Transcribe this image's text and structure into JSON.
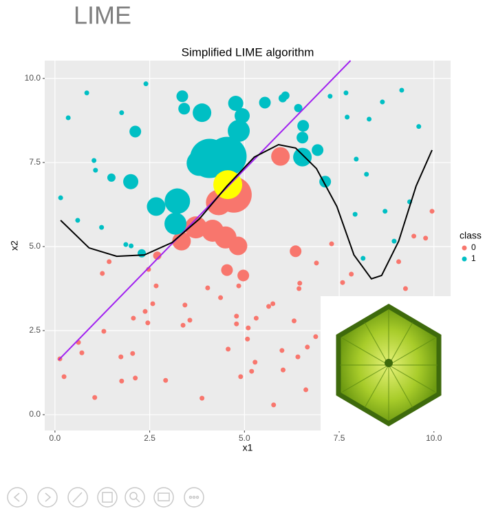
{
  "slide_title": "LIME",
  "chart_data": {
    "type": "scatter",
    "title": "Simplified LIME algorithm",
    "xlabel": "x1",
    "ylabel": "x2",
    "legend_title": "class",
    "xlim": [
      -0.27,
      10.44
    ],
    "ylim": [
      -0.47,
      10.53
    ],
    "xticks": [
      {
        "value": 0,
        "label": "0.0"
      },
      {
        "value": 2.5,
        "label": "2.5"
      },
      {
        "value": 5,
        "label": "5.0"
      },
      {
        "value": 7.5,
        "label": "7.5"
      },
      {
        "value": 10,
        "label": "10.0"
      }
    ],
    "yticks": [
      {
        "value": 0,
        "label": "0.0"
      },
      {
        "value": 2.5,
        "label": "2.5"
      },
      {
        "value": 5,
        "label": "5.0"
      },
      {
        "value": 7.5,
        "label": "7.5"
      },
      {
        "value": 10,
        "label": "10.0"
      }
    ],
    "grid": true,
    "panel_color": "#EBEBEB",
    "series": [
      {
        "name": "0",
        "color": "#F8766D",
        "x": [
          0.13,
          0.24,
          0.62,
          0.71,
          1.05,
          1.25,
          1.29,
          1.43,
          1.74,
          1.76,
          2.05,
          2.07,
          2.12,
          2.38,
          2.45,
          2.47,
          2.58,
          2.7,
          2.67,
          2.92,
          3.38,
          3.43,
          3.56,
          3.34,
          3.72,
          4.03,
          3.88,
          4.16,
          4.37,
          4.32,
          4.72,
          4.5,
          4.54,
          4.83,
          4.85,
          4.97,
          4.79,
          4.79,
          4.57,
          4.9,
          5.1,
          5.08,
          5.19,
          5.28,
          5.31,
          5.64,
          5.75,
          5.77,
          5.95,
          5.99,
          6.02,
          6.31,
          6.35,
          6.46,
          6.44,
          6.41,
          6.62,
          6.9,
          6.66,
          6.88,
          7.3,
          7.59,
          7.82,
          9.07,
          9.25,
          9.47,
          9.78,
          9.95
        ],
        "values": [
          1.66,
          1.13,
          2.15,
          1.84,
          0.51,
          4.2,
          2.48,
          4.55,
          1.72,
          1,
          1.82,
          2.87,
          1.09,
          3.07,
          2.73,
          4.32,
          3.3,
          4.73,
          3.83,
          1.02,
          2.66,
          3.26,
          2.81,
          5.16,
          5.57,
          3.77,
          0.49,
          5.47,
          3.48,
          6.31,
          6.54,
          5.27,
          4.3,
          5.02,
          3.83,
          4.14,
          2.93,
          2.7,
          1.95,
          1.13,
          2.58,
          2.25,
          1.29,
          1.56,
          2.87,
          3.22,
          3.3,
          0.29,
          7.68,
          1.91,
          1.33,
          2.79,
          4.86,
          3.91,
          3.75,
          1.72,
          0.74,
          4.51,
          2.01,
          2.32,
          5.08,
          3.93,
          4.18,
          4.55,
          3.75,
          5.31,
          5.25,
          6.05
        ],
        "sizes": [
          1,
          1,
          1,
          1,
          1,
          1,
          1,
          1,
          1,
          1,
          1,
          1,
          1,
          1,
          1,
          1,
          1,
          2,
          1,
          1,
          1,
          1,
          1,
          5,
          6,
          1,
          1,
          6,
          1,
          7,
          10,
          6,
          3,
          5,
          1,
          3,
          1,
          1,
          1,
          1,
          1,
          1,
          1,
          1,
          1,
          1,
          1,
          1,
          5,
          1,
          1,
          1,
          3,
          1,
          1,
          1,
          1,
          1,
          1,
          1,
          1,
          1,
          1,
          1,
          1,
          1,
          1,
          1
        ]
      },
      {
        "name": "1",
        "color": "#00BFC4",
        "x": [
          0.15,
          0.35,
          0.84,
          0.6,
          1.03,
          1.07,
          1.23,
          1.49,
          1.76,
          2.12,
          2.4,
          2,
          1.87,
          2.01,
          2.29,
          2.67,
          3.23,
          3.18,
          3.36,
          3.41,
          3.88,
          4.08,
          4.54,
          3.81,
          4.77,
          4.85,
          4.94,
          5.54,
          6.01,
          6.08,
          6.42,
          6.55,
          6.53,
          6.53,
          6.93,
          7.13,
          7.26,
          7.68,
          7.71,
          8.29,
          8.64,
          9.15,
          9.6,
          7.95,
          8.22,
          7.92,
          8.71,
          9.36,
          8.95,
          8.13
        ],
        "values": [
          6.45,
          8.83,
          9.57,
          5.78,
          7.56,
          7.27,
          5.57,
          7.05,
          8.98,
          8.42,
          9.84,
          6.93,
          5.06,
          5.02,
          4.8,
          6.19,
          6.35,
          5.68,
          9.47,
          9.1,
          8.98,
          7.62,
          7.68,
          7.48,
          9.26,
          8.44,
          8.89,
          9.28,
          9.41,
          9.49,
          9.12,
          8.59,
          8.24,
          7.66,
          7.87,
          6.93,
          9.47,
          9.57,
          8.85,
          8.79,
          9.3,
          9.65,
          8.57,
          7.6,
          7.15,
          5.96,
          6.05,
          6.33,
          5.16,
          4.65
        ],
        "sizes": [
          1,
          1,
          1,
          1,
          1,
          1,
          1,
          2,
          1,
          3,
          1,
          4,
          1,
          1,
          2,
          5,
          7,
          6,
          3,
          3,
          5,
          11,
          11,
          7,
          4,
          6,
          4,
          3,
          2,
          2,
          2,
          3,
          3,
          5,
          3,
          3,
          1,
          1,
          1,
          1,
          1,
          1,
          1,
          1,
          1,
          1,
          1,
          1,
          1,
          1
        ]
      }
    ],
    "highlight": {
      "x": 4.56,
      "y": 6.84,
      "size": 8,
      "color": "#FFFF00"
    },
    "lines": [
      {
        "color": "#A020F0",
        "x": [
          0.1,
          7.8
        ],
        "values": [
          1.63,
          10.53
        ]
      },
      {
        "color": "#000000",
        "x": [
          0.15,
          0.9,
          1.63,
          2.36,
          3.09,
          3.81,
          4.54,
          5.26,
          5.9,
          6.35,
          6.9,
          7.44,
          7.89,
          8.35,
          8.62,
          9.07,
          9.53,
          9.95
        ],
        "values": [
          5.78,
          4.96,
          4.71,
          4.75,
          5.12,
          5.82,
          6.8,
          7.66,
          8.03,
          7.93,
          7.32,
          6.19,
          4.75,
          4.04,
          4.14,
          5.16,
          6.8,
          7.87
        ]
      }
    ]
  }
}
